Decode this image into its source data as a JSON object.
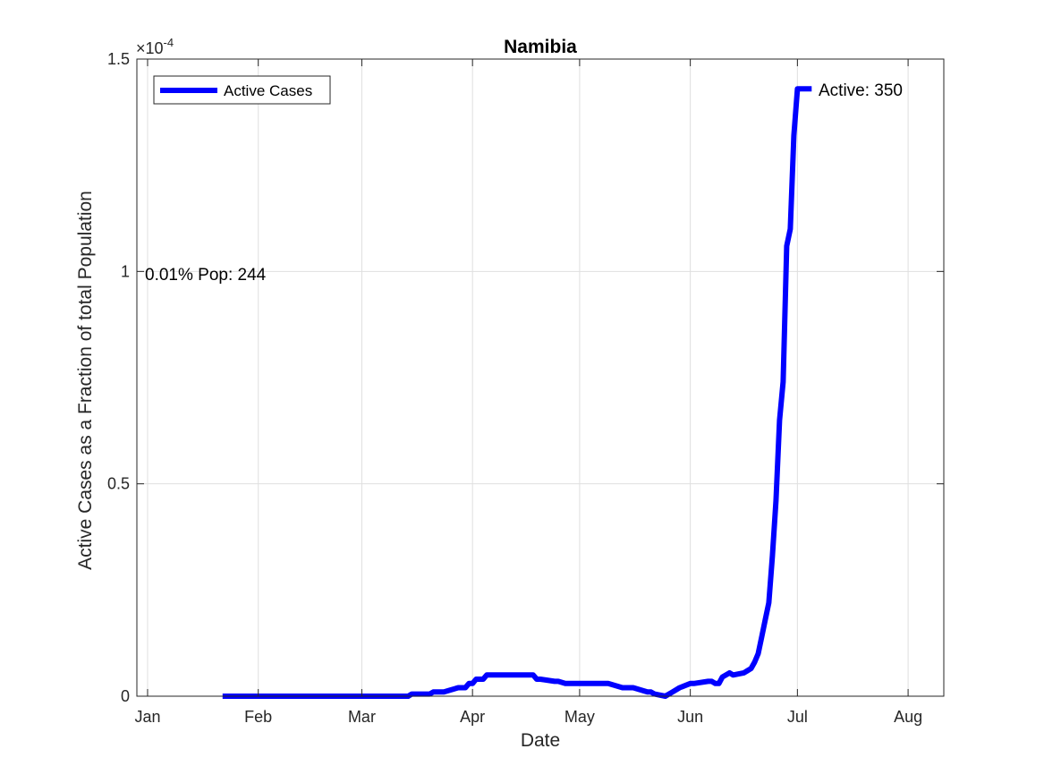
{
  "chart_data": {
    "type": "line",
    "title": "Namibia",
    "xlabel": "Date",
    "ylabel": "Active Cases as a Fraction of total Population",
    "y_exponent_label": "×10",
    "y_exponent": "-4",
    "x_tick_labels": [
      "Jan",
      "Feb",
      "Mar",
      "Apr",
      "May",
      "Jun",
      "Jul",
      "Aug"
    ],
    "x_tick_dates": [
      "2020-01-01",
      "2020-02-01",
      "2020-03-01",
      "2020-04-01",
      "2020-05-01",
      "2020-06-01",
      "2020-07-01",
      "2020-08-01"
    ],
    "xlim": [
      "2019-12-29",
      "2020-08-11"
    ],
    "y_tick_labels": [
      "0",
      "0.5",
      "1",
      "1.5"
    ],
    "y_ticks": [
      0,
      0.5,
      1,
      1.5
    ],
    "ylim": [
      0,
      1.5
    ],
    "y_scale_note": "values in units of 1e-4",
    "grid": true,
    "legend_position": "top-left",
    "series": [
      {
        "name": "Active Cases",
        "color": "#0000ff",
        "x": [
          "2020-01-22",
          "2020-03-14",
          "2020-03-15",
          "2020-03-20",
          "2020-03-21",
          "2020-03-24",
          "2020-03-26",
          "2020-03-28",
          "2020-03-30",
          "2020-03-31",
          "2020-04-01",
          "2020-04-02",
          "2020-04-04",
          "2020-04-05",
          "2020-04-18",
          "2020-04-19",
          "2020-04-20",
          "2020-04-24",
          "2020-04-25",
          "2020-04-27",
          "2020-04-28",
          "2020-05-09",
          "2020-05-11",
          "2020-05-13",
          "2020-05-16",
          "2020-05-20",
          "2020-05-21",
          "2020-05-22",
          "2020-05-25",
          "2020-05-27",
          "2020-05-29",
          "2020-06-01",
          "2020-06-02",
          "2020-06-06",
          "2020-06-07",
          "2020-06-08",
          "2020-06-09",
          "2020-06-10",
          "2020-06-12",
          "2020-06-13",
          "2020-06-16",
          "2020-06-17",
          "2020-06-18",
          "2020-06-19",
          "2020-06-20",
          "2020-06-21",
          "2020-06-22",
          "2020-06-23",
          "2020-06-24",
          "2020-06-25",
          "2020-06-26",
          "2020-06-27",
          "2020-06-28",
          "2020-06-29",
          "2020-06-30",
          "2020-07-01",
          "2020-07-02",
          "2020-07-03",
          "2020-07-04",
          "2020-07-05"
        ],
        "y": [
          0,
          0,
          0.005,
          0.005,
          0.01,
          0.01,
          0.015,
          0.02,
          0.02,
          0.03,
          0.03,
          0.04,
          0.04,
          0.05,
          0.05,
          0.04,
          0.04,
          0.035,
          0.035,
          0.03,
          0.03,
          0.03,
          0.025,
          0.02,
          0.02,
          0.01,
          0.01,
          0.005,
          0,
          0.01,
          0.02,
          0.03,
          0.03,
          0.035,
          0.035,
          0.03,
          0.03,
          0.045,
          0.055,
          0.05,
          0.055,
          0.06,
          0.065,
          0.08,
          0.1,
          0.14,
          0.18,
          0.22,
          0.33,
          0.46,
          0.65,
          0.74,
          1.06,
          1.1,
          1.32,
          1.43,
          1.43,
          1.43,
          1.43,
          1.43
        ]
      }
    ],
    "annotations": [
      {
        "text": "Active: 350"
      },
      {
        "text": "0.01% Pop: 244"
      }
    ]
  }
}
